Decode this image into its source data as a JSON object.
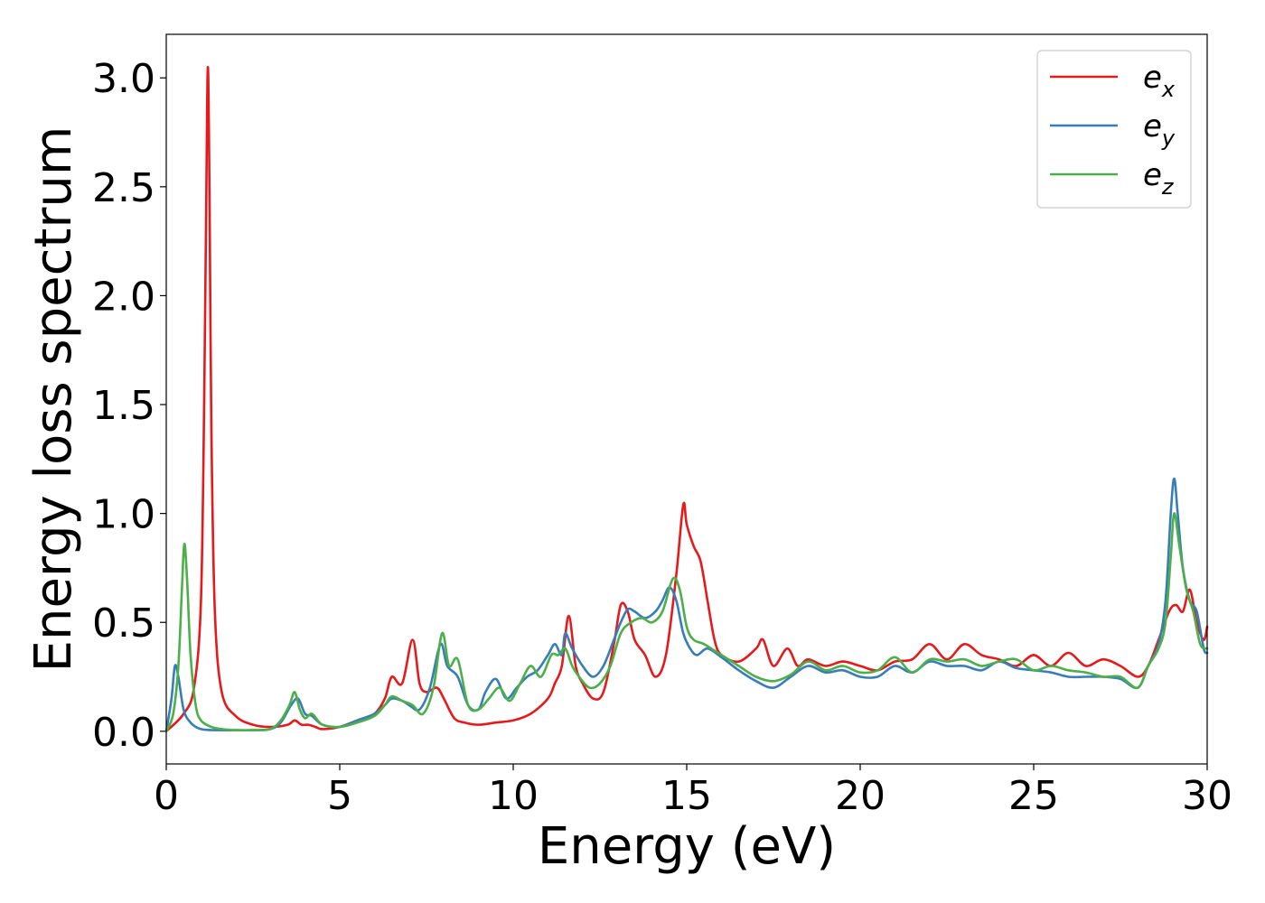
{
  "chart_data": {
    "type": "line",
    "title": "",
    "xlabel": "Energy (eV)",
    "ylabel": "Energy loss spectrum",
    "xlim": [
      0,
      30
    ],
    "ylim": [
      -0.15,
      3.2
    ],
    "xticks": [
      0,
      5,
      10,
      15,
      20,
      25,
      30
    ],
    "xtick_labels": [
      "0",
      "5",
      "10",
      "15",
      "20",
      "25",
      "30"
    ],
    "yticks": [
      0.0,
      0.5,
      1.0,
      1.5,
      2.0,
      2.5,
      3.0
    ],
    "ytick_labels": [
      "0.0",
      "0.5",
      "1.0",
      "1.5",
      "2.0",
      "2.5",
      "3.0"
    ],
    "grid": false,
    "legend_position": "top-right",
    "series": [
      {
        "name": "e_x",
        "legend_base": "e",
        "legend_sub": "x",
        "color": "#e41a1c",
        "x": [
          0,
          0.5,
          0.8,
          1.0,
          1.1,
          1.15,
          1.2,
          1.25,
          1.3,
          1.4,
          1.6,
          2.0,
          2.5,
          3.0,
          3.5,
          3.7,
          3.9,
          4.1,
          4.3,
          4.5,
          5.0,
          5.5,
          6.0,
          6.3,
          6.5,
          6.8,
          7.1,
          7.3,
          7.5,
          7.8,
          8.0,
          8.3,
          8.6,
          9.0,
          9.5,
          10.0,
          10.5,
          11.0,
          11.2,
          11.4,
          11.6,
          11.8,
          12.0,
          12.3,
          12.6,
          12.9,
          13.1,
          13.3,
          13.5,
          13.8,
          14.1,
          14.4,
          14.7,
          14.9,
          15.0,
          15.2,
          15.4,
          15.6,
          15.8,
          16.0,
          16.5,
          17.0,
          17.2,
          17.5,
          17.9,
          18.2,
          18.5,
          19.0,
          19.5,
          20.0,
          20.5,
          21.0,
          21.5,
          22.0,
          22.5,
          23.0,
          23.5,
          24.0,
          24.5,
          25.0,
          25.5,
          26.0,
          26.5,
          27.0,
          27.5,
          28.0,
          28.3,
          28.6,
          28.9,
          29.1,
          29.3,
          29.5,
          29.7,
          29.9,
          30.0
        ],
        "y": [
          0.0,
          0.08,
          0.2,
          0.6,
          1.6,
          2.4,
          3.05,
          2.4,
          1.4,
          0.55,
          0.18,
          0.07,
          0.03,
          0.02,
          0.03,
          0.05,
          0.03,
          0.03,
          0.02,
          0.01,
          0.02,
          0.05,
          0.08,
          0.15,
          0.25,
          0.22,
          0.42,
          0.22,
          0.18,
          0.2,
          0.15,
          0.06,
          0.04,
          0.03,
          0.04,
          0.05,
          0.08,
          0.15,
          0.22,
          0.3,
          0.53,
          0.3,
          0.22,
          0.15,
          0.18,
          0.4,
          0.58,
          0.55,
          0.42,
          0.35,
          0.25,
          0.35,
          0.72,
          1.04,
          0.95,
          0.85,
          0.78,
          0.6,
          0.42,
          0.35,
          0.32,
          0.38,
          0.42,
          0.3,
          0.38,
          0.3,
          0.33,
          0.3,
          0.32,
          0.3,
          0.28,
          0.32,
          0.33,
          0.4,
          0.33,
          0.4,
          0.35,
          0.33,
          0.3,
          0.35,
          0.3,
          0.36,
          0.3,
          0.33,
          0.3,
          0.25,
          0.3,
          0.42,
          0.55,
          0.58,
          0.55,
          0.65,
          0.5,
          0.42,
          0.48
        ]
      },
      {
        "name": "e_y",
        "legend_base": "e",
        "legend_sub": "y",
        "color": "#377eb8",
        "x": [
          0,
          0.15,
          0.25,
          0.35,
          0.5,
          0.7,
          1.0,
          1.5,
          2.0,
          2.5,
          3.0,
          3.3,
          3.6,
          3.8,
          4.0,
          4.2,
          4.5,
          5.0,
          5.5,
          6.0,
          6.3,
          6.5,
          6.8,
          7.0,
          7.3,
          7.6,
          7.9,
          8.1,
          8.4,
          8.7,
          9.0,
          9.2,
          9.5,
          9.8,
          10.1,
          10.4,
          10.7,
          11.0,
          11.2,
          11.4,
          11.5,
          11.7,
          12.0,
          12.3,
          12.6,
          12.9,
          13.1,
          13.3,
          13.5,
          13.8,
          14.1,
          14.3,
          14.5,
          14.7,
          14.9,
          15.1,
          15.3,
          15.6,
          16.0,
          16.5,
          17.0,
          17.5,
          18.0,
          18.5,
          19.0,
          19.5,
          20.0,
          20.5,
          21.0,
          21.5,
          22.0,
          22.5,
          23.0,
          23.5,
          24.0,
          24.5,
          25.0,
          25.5,
          26.0,
          26.5,
          27.0,
          27.5,
          28.0,
          28.3,
          28.6,
          28.8,
          28.95,
          29.05,
          29.15,
          29.3,
          29.5,
          29.7,
          29.9,
          30.0
        ],
        "y": [
          0.0,
          0.15,
          0.3,
          0.25,
          0.1,
          0.04,
          0.01,
          0.005,
          0.005,
          0.005,
          0.01,
          0.04,
          0.12,
          0.15,
          0.08,
          0.07,
          0.03,
          0.02,
          0.05,
          0.08,
          0.12,
          0.15,
          0.14,
          0.12,
          0.1,
          0.2,
          0.4,
          0.3,
          0.25,
          0.12,
          0.1,
          0.18,
          0.24,
          0.15,
          0.2,
          0.25,
          0.28,
          0.35,
          0.4,
          0.35,
          0.45,
          0.38,
          0.3,
          0.25,
          0.3,
          0.42,
          0.5,
          0.56,
          0.55,
          0.52,
          0.55,
          0.6,
          0.66,
          0.6,
          0.45,
          0.38,
          0.35,
          0.38,
          0.34,
          0.28,
          0.23,
          0.2,
          0.25,
          0.3,
          0.27,
          0.28,
          0.25,
          0.25,
          0.3,
          0.27,
          0.32,
          0.3,
          0.3,
          0.28,
          0.32,
          0.29,
          0.28,
          0.27,
          0.25,
          0.25,
          0.25,
          0.24,
          0.2,
          0.3,
          0.4,
          0.6,
          1.0,
          1.16,
          1.0,
          0.75,
          0.6,
          0.55,
          0.38,
          0.36
        ]
      },
      {
        "name": "e_z",
        "legend_base": "e",
        "legend_sub": "z",
        "color": "#4daf4a",
        "x": [
          0,
          0.2,
          0.35,
          0.45,
          0.52,
          0.6,
          0.7,
          0.85,
          1.0,
          1.3,
          1.6,
          2.0,
          2.5,
          3.0,
          3.3,
          3.55,
          3.7,
          3.85,
          4.0,
          4.2,
          4.5,
          5.0,
          5.5,
          6.0,
          6.3,
          6.5,
          6.8,
          7.1,
          7.4,
          7.7,
          7.95,
          8.15,
          8.4,
          8.7,
          9.0,
          9.3,
          9.6,
          9.9,
          10.2,
          10.5,
          10.8,
          11.1,
          11.3,
          11.5,
          11.7,
          11.9,
          12.2,
          12.5,
          12.8,
          13.1,
          13.4,
          13.7,
          14.0,
          14.3,
          14.6,
          14.8,
          15.0,
          15.2,
          15.5,
          16.0,
          16.5,
          17.0,
          17.5,
          18.0,
          18.5,
          19.0,
          19.5,
          20.0,
          20.5,
          21.0,
          21.5,
          22.0,
          22.5,
          23.0,
          23.5,
          24.0,
          24.5,
          25.0,
          25.5,
          26.0,
          26.5,
          27.0,
          27.5,
          28.0,
          28.3,
          28.6,
          28.8,
          28.95,
          29.05,
          29.2,
          29.4,
          29.6,
          29.8,
          30.0
        ],
        "y": [
          0.0,
          0.08,
          0.3,
          0.65,
          0.86,
          0.7,
          0.35,
          0.12,
          0.05,
          0.02,
          0.01,
          0.005,
          0.005,
          0.01,
          0.05,
          0.12,
          0.18,
          0.1,
          0.06,
          0.08,
          0.03,
          0.02,
          0.04,
          0.07,
          0.12,
          0.16,
          0.14,
          0.12,
          0.08,
          0.2,
          0.45,
          0.3,
          0.33,
          0.12,
          0.1,
          0.15,
          0.2,
          0.14,
          0.22,
          0.3,
          0.25,
          0.35,
          0.35,
          0.38,
          0.3,
          0.25,
          0.2,
          0.22,
          0.3,
          0.45,
          0.5,
          0.52,
          0.5,
          0.55,
          0.7,
          0.65,
          0.48,
          0.42,
          0.4,
          0.35,
          0.3,
          0.25,
          0.23,
          0.26,
          0.32,
          0.28,
          0.3,
          0.27,
          0.28,
          0.34,
          0.27,
          0.33,
          0.32,
          0.33,
          0.3,
          0.32,
          0.33,
          0.28,
          0.3,
          0.28,
          0.27,
          0.25,
          0.25,
          0.2,
          0.3,
          0.38,
          0.5,
          0.8,
          1.0,
          0.85,
          0.65,
          0.55,
          0.4,
          0.38
        ]
      }
    ]
  }
}
